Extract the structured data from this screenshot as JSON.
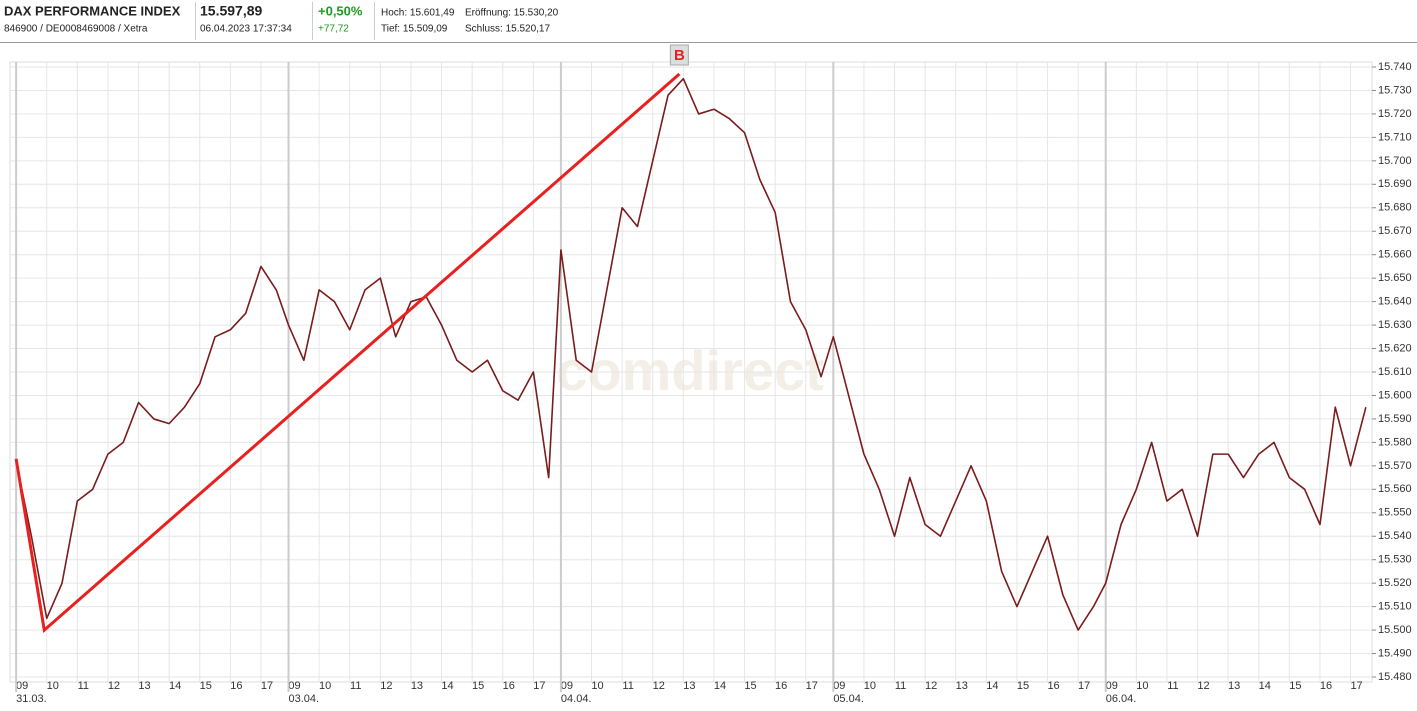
{
  "header": {
    "name": "DAX PERFORMANCE INDEX",
    "ids": "846900 / DE0008469008 / Xetra",
    "price": "15.597,89",
    "timestamp": "06.04.2023 17:37:34",
    "change_pct": "+0,50%",
    "change_abs": "+77,72",
    "high": "Hoch: 15.601,49",
    "open": "Eröffnung: 15.530,20",
    "low": "Tief: 15.509,09",
    "close": "Schluss: 15.520,17"
  },
  "chart_data": {
    "type": "line",
    "watermark": "comdirect",
    "x": [
      0,
      0.5,
      1,
      1.5,
      2,
      2.5,
      3,
      3.5,
      4,
      4.5,
      5,
      5.5,
      6,
      6.5,
      7,
      7.5,
      8,
      8.5,
      8.9,
      9.4,
      9.9,
      10.4,
      10.9,
      11.4,
      11.9,
      12.4,
      12.9,
      13.4,
      13.9,
      14.4,
      14.9,
      15.4,
      15.9,
      16.4,
      16.9,
      17.4,
      17.8,
      18.3,
      18.8,
      19.3,
      19.8,
      20.3,
      20.8,
      21.3,
      21.8,
      22.3,
      22.8,
      23.3,
      23.8,
      24.3,
      24.8,
      25.3,
      25.8,
      26.3,
      26.7,
      27.2,
      27.7,
      28.2,
      28.7,
      29.2,
      29.7,
      30.2,
      30.7,
      31.2,
      31.7,
      32.2,
      32.7,
      33.2,
      33.7,
      34.2,
      34.7,
      35.2,
      35.6,
      36.1,
      36.6,
      37.1,
      37.6,
      38.1,
      38.6,
      39.1,
      39.6,
      40.1,
      40.6,
      41.1,
      41.6,
      42.1,
      42.6,
      43.1,
      43.6,
      44.1
    ],
    "series": [
      {
        "color": "#7a1c1c",
        "values": [
          15572,
          15540,
          15505,
          15520,
          15555,
          15560,
          15575,
          15580,
          15597,
          15590,
          15588,
          15595,
          15605,
          15625,
          15628,
          15635,
          15655,
          15645,
          15630,
          15615,
          15645,
          15640,
          15628,
          15645,
          15650,
          15625,
          15640,
          15642,
          15630,
          15615,
          15610,
          15615,
          15602,
          15598,
          15610,
          15565,
          15662,
          15615,
          15610,
          15645,
          15680,
          15672,
          15700,
          15728,
          15735,
          15720,
          15722,
          15718,
          15712,
          15692,
          15678,
          15640,
          15628,
          15608,
          15625,
          15600,
          15575,
          15560,
          15540,
          15565,
          15545,
          15540,
          15555,
          15570,
          15555,
          15525,
          15510,
          15525,
          15540,
          15515,
          15500,
          15510,
          15520,
          15545,
          15560,
          15580,
          15555,
          15560,
          15540,
          15575,
          15575,
          15565,
          15575,
          15580,
          15565,
          15560,
          15545,
          15595,
          15570,
          15595
        ]
      }
    ],
    "trendline": {
      "color": "#e8201e",
      "x": [
        0,
        0.92,
        21.67
      ],
      "y": [
        15573,
        15500,
        15737
      ]
    },
    "marker": {
      "label": "B",
      "x": 21.67,
      "y": 15740
    },
    "xlim": [
      -0.2,
      44.3
    ],
    "ylim": [
      15480,
      15740
    ],
    "xticks": [
      {
        "value": 0,
        "label": "09"
      },
      {
        "value": 1,
        "label": "10"
      },
      {
        "value": 2,
        "label": "11"
      },
      {
        "value": 3,
        "label": "12"
      },
      {
        "value": 4,
        "label": "13"
      },
      {
        "value": 5,
        "label": "14"
      },
      {
        "value": 6,
        "label": "15"
      },
      {
        "value": 7,
        "label": "16"
      },
      {
        "value": 8,
        "label": "17"
      },
      {
        "value": 8.9,
        "label": "09"
      },
      {
        "value": 9.9,
        "label": "10"
      },
      {
        "value": 10.9,
        "label": "11"
      },
      {
        "value": 11.9,
        "label": "12"
      },
      {
        "value": 12.9,
        "label": "13"
      },
      {
        "value": 13.9,
        "label": "14"
      },
      {
        "value": 14.9,
        "label": "15"
      },
      {
        "value": 15.9,
        "label": "16"
      },
      {
        "value": 16.9,
        "label": "17"
      },
      {
        "value": 17.8,
        "label": "09"
      },
      {
        "value": 18.8,
        "label": "10"
      },
      {
        "value": 19.8,
        "label": "11"
      },
      {
        "value": 20.8,
        "label": "12"
      },
      {
        "value": 21.8,
        "label": "13"
      },
      {
        "value": 22.8,
        "label": "14"
      },
      {
        "value": 23.8,
        "label": "15"
      },
      {
        "value": 24.8,
        "label": "16"
      },
      {
        "value": 25.8,
        "label": "17"
      },
      {
        "value": 26.7,
        "label": "09"
      },
      {
        "value": 27.7,
        "label": "10"
      },
      {
        "value": 28.7,
        "label": "11"
      },
      {
        "value": 29.7,
        "label": "12"
      },
      {
        "value": 30.7,
        "label": "13"
      },
      {
        "value": 31.7,
        "label": "14"
      },
      {
        "value": 32.7,
        "label": "15"
      },
      {
        "value": 33.7,
        "label": "16"
      },
      {
        "value": 34.7,
        "label": "17"
      },
      {
        "value": 35.6,
        "label": "09"
      },
      {
        "value": 36.6,
        "label": "10"
      },
      {
        "value": 37.6,
        "label": "11"
      },
      {
        "value": 38.6,
        "label": "12"
      },
      {
        "value": 39.6,
        "label": "13"
      },
      {
        "value": 40.6,
        "label": "14"
      },
      {
        "value": 41.6,
        "label": "15"
      },
      {
        "value": 42.6,
        "label": "16"
      },
      {
        "value": 43.6,
        "label": "17"
      }
    ],
    "day_ticks": [
      {
        "value": 0,
        "label": "31.03."
      },
      {
        "value": 8.9,
        "label": "03.04."
      },
      {
        "value": 17.8,
        "label": "04.04."
      },
      {
        "value": 26.7,
        "label": "05.04."
      },
      {
        "value": 35.6,
        "label": "06.04."
      }
    ],
    "yticks": [
      {
        "value": 15480,
        "label": "15.480"
      },
      {
        "value": 15490,
        "label": "15.490"
      },
      {
        "value": 15500,
        "label": "15.500"
      },
      {
        "value": 15510,
        "label": "15.510"
      },
      {
        "value": 15520,
        "label": "15.520"
      },
      {
        "value": 15530,
        "label": "15.530"
      },
      {
        "value": 15540,
        "label": "15.540"
      },
      {
        "value": 15550,
        "label": "15.550"
      },
      {
        "value": 15560,
        "label": "15.560"
      },
      {
        "value": 15570,
        "label": "15.570"
      },
      {
        "value": 15580,
        "label": "15.580"
      },
      {
        "value": 15590,
        "label": "15.590"
      },
      {
        "value": 15600,
        "label": "15.600"
      },
      {
        "value": 15610,
        "label": "15.610"
      },
      {
        "value": 15620,
        "label": "15.620"
      },
      {
        "value": 15630,
        "label": "15.630"
      },
      {
        "value": 15640,
        "label": "15.640"
      },
      {
        "value": 15650,
        "label": "15.650"
      },
      {
        "value": 15660,
        "label": "15.660"
      },
      {
        "value": 15670,
        "label": "15.670"
      },
      {
        "value": 15680,
        "label": "15.680"
      },
      {
        "value": 15690,
        "label": "15.690"
      },
      {
        "value": 15700,
        "label": "15.700"
      },
      {
        "value": 15710,
        "label": "15.710"
      },
      {
        "value": 15720,
        "label": "15.720"
      },
      {
        "value": 15730,
        "label": "15.730"
      },
      {
        "value": 15740,
        "label": "15.740"
      }
    ],
    "grid": true
  }
}
